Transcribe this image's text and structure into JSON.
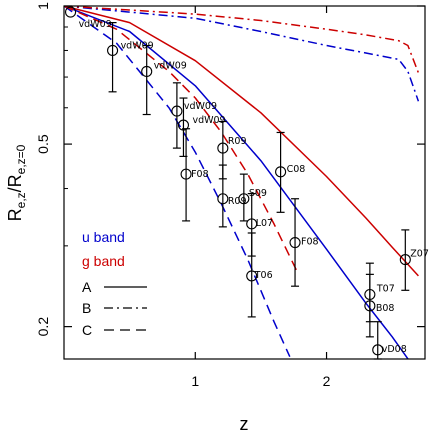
{
  "chart_data": {
    "type": "scatter",
    "title": "",
    "xlabel": "z",
    "ylabel_main": "R",
    "ylabel_sub": "e,z",
    "ylabel_mid": "/R",
    "ylabel_sub2": "e,z=0",
    "xlim": [
      0,
      2.75
    ],
    "ylim": [
      0.17,
      1.0
    ],
    "yscale": "log",
    "xticks": [
      1,
      2
    ],
    "xtick_labels": [
      "1",
      "2"
    ],
    "yticks": [
      0.2,
      0.5,
      1.0
    ],
    "ytick_labels": [
      "0.2",
      "0.5",
      "1"
    ],
    "grid": false,
    "legend_position": "lower-left",
    "legend_colors": [
      {
        "label": "u band",
        "color": "#0000cc"
      },
      {
        "label": "g band",
        "color": "#cc0000"
      }
    ],
    "legend_styles": [
      {
        "label": "A",
        "dash": "solid"
      },
      {
        "label": "B",
        "dash": "dashdot"
      },
      {
        "label": "C",
        "dash": "dashed"
      }
    ],
    "points": [
      {
        "label": "vdW09",
        "x": 0.05,
        "y": 0.97,
        "err_lo": 0.97,
        "err_hi": 0.97
      },
      {
        "label": "vdW09",
        "x": 0.37,
        "y": 0.8,
        "err_lo": 0.65,
        "err_hi": 0.92
      },
      {
        "label": "vdW09",
        "x": 0.63,
        "y": 0.72,
        "err_lo": 0.58,
        "err_hi": 0.82
      },
      {
        "label": "vdW09",
        "x": 0.86,
        "y": 0.59,
        "err_lo": 0.49,
        "err_hi": 0.68
      },
      {
        "label": "vdW09",
        "x": 0.91,
        "y": 0.55,
        "err_lo": 0.47,
        "err_hi": 0.63
      },
      {
        "label": "F08",
        "x": 0.93,
        "y": 0.43,
        "err_lo": 0.34,
        "err_hi": 0.54
      },
      {
        "label": "R09",
        "x": 1.21,
        "y": 0.49,
        "err_lo": 0.42,
        "err_hi": 0.56
      },
      {
        "label": "R09",
        "x": 1.21,
        "y": 0.38,
        "err_lo": 0.33,
        "err_hi": 0.45
      },
      {
        "label": "S09",
        "x": 1.37,
        "y": 0.38,
        "err_lo": 0.34,
        "err_hi": 0.43
      },
      {
        "label": "L07",
        "x": 1.43,
        "y": 0.335,
        "err_lo": 0.285,
        "err_hi": 0.39
      },
      {
        "label": "C08",
        "x": 1.65,
        "y": 0.435,
        "err_lo": 0.355,
        "err_hi": 0.53
      },
      {
        "label": "T06",
        "x": 1.43,
        "y": 0.258,
        "err_lo": 0.21,
        "err_hi": 0.32
      },
      {
        "label": "F08",
        "x": 1.76,
        "y": 0.305,
        "err_lo": 0.245,
        "err_hi": 0.38
      },
      {
        "label": "Z07",
        "x": 2.6,
        "y": 0.28,
        "err_lo": 0.24,
        "err_hi": 0.325
      },
      {
        "label": "T07",
        "x": 2.33,
        "y": 0.235,
        "err_lo": 0.205,
        "err_hi": 0.275
      },
      {
        "label": "B08",
        "x": 2.33,
        "y": 0.222,
        "err_lo": 0.19,
        "err_hi": 0.26
      },
      {
        "label": "vD08",
        "x": 2.39,
        "y": 0.178,
        "err_lo": 0.17,
        "err_hi": 0.205
      }
    ],
    "series": [
      {
        "band": "u band",
        "model": "A",
        "color": "#0000cc",
        "dash": "solid",
        "x": [
          0,
          0.5,
          1.0,
          1.5,
          2.0,
          2.3,
          2.5,
          2.7
        ],
        "y": [
          1.0,
          0.88,
          0.67,
          0.46,
          0.295,
          0.225,
          0.19,
          0.158
        ]
      },
      {
        "band": "g band",
        "model": "A",
        "color": "#cc0000",
        "dash": "solid",
        "x": [
          0,
          0.5,
          1.0,
          1.5,
          2.0,
          2.3,
          2.5,
          2.7
        ],
        "y": [
          1.0,
          0.92,
          0.76,
          0.585,
          0.425,
          0.345,
          0.298,
          0.258
        ]
      },
      {
        "band": "u band",
        "model": "B",
        "color": "#0000cc",
        "dash": "dashdot",
        "x": [
          0,
          0.5,
          1.0,
          1.5,
          2.0,
          2.3,
          2.55,
          2.62,
          2.7
        ],
        "y": [
          1.0,
          0.97,
          0.94,
          0.88,
          0.82,
          0.79,
          0.765,
          0.72,
          0.62
        ]
      },
      {
        "band": "g band",
        "model": "B",
        "color": "#cc0000",
        "dash": "dashdot",
        "x": [
          0,
          0.5,
          1.0,
          1.5,
          2.0,
          2.3,
          2.55,
          2.62,
          2.7
        ],
        "y": [
          1.0,
          0.98,
          0.96,
          0.93,
          0.89,
          0.865,
          0.84,
          0.82,
          0.715
        ]
      },
      {
        "band": "u band",
        "model": "C",
        "color": "#0000cc",
        "dash": "dashed",
        "x": [
          0,
          0.4,
          0.8,
          1.0,
          1.2,
          1.4,
          1.6,
          1.72
        ],
        "y": [
          1.0,
          0.83,
          0.6,
          0.48,
          0.37,
          0.28,
          0.205,
          0.172
        ]
      },
      {
        "band": "g band",
        "model": "C",
        "color": "#cc0000",
        "dash": "dashed",
        "x": [
          0,
          0.4,
          0.8,
          1.0,
          1.2,
          1.4,
          1.6,
          1.78
        ],
        "y": [
          1.0,
          0.89,
          0.72,
          0.63,
          0.53,
          0.43,
          0.335,
          0.262
        ]
      }
    ]
  }
}
